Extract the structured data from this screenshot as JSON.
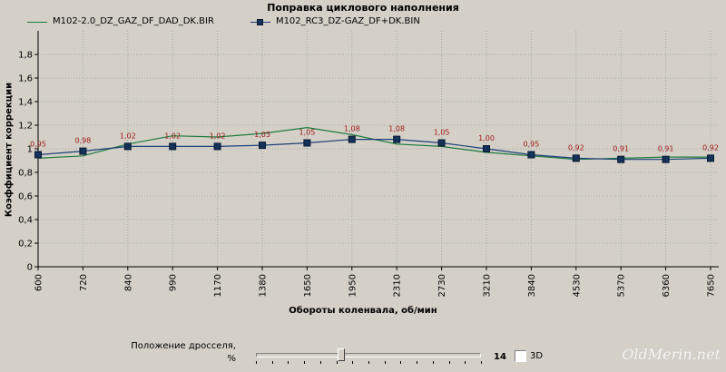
{
  "chart_data": {
    "type": "line",
    "title": "Поправка циклового наполнения",
    "xlabel": "Обороты коленвала, об/мин",
    "ylabel": "Коэффициент коррекции",
    "categories": [
      "600",
      "720",
      "840",
      "990",
      "1170",
      "1380",
      "1650",
      "1950",
      "2310",
      "2730",
      "3210",
      "3840",
      "4530",
      "5370",
      "6360",
      "7650"
    ],
    "ylim": [
      0,
      2
    ],
    "yticks": [
      "0",
      "0,2",
      "0,4",
      "0,6",
      "0,8",
      "1",
      "1,2",
      "1,4",
      "1,6",
      "1,8"
    ],
    "grid": true,
    "legend_position": "top-left",
    "series": [
      {
        "name": "M102-2.0_DZ_GAZ_DF_DAD_DK.BIR",
        "color": "#1d7a3c",
        "marker": "none",
        "values": [
          0.92,
          0.94,
          1.04,
          1.11,
          1.1,
          1.13,
          1.18,
          1.12,
          1.04,
          1.02,
          0.97,
          0.94,
          0.91,
          0.92,
          0.93,
          0.93
        ]
      },
      {
        "name": "M102_RC3_DZ-GAZ_DF+DK.BIN",
        "color": "#1c3e78",
        "marker": "square",
        "values": [
          0.95,
          0.98,
          1.02,
          1.02,
          1.02,
          1.03,
          1.05,
          1.08,
          1.08,
          1.05,
          1.0,
          0.95,
          0.92,
          0.91,
          0.91,
          0.92
        ],
        "labels": [
          "0,95",
          "0,98",
          "1,02",
          "1,02",
          "1,02",
          "1,03",
          "1,05",
          "1,08",
          "1,08",
          "1,05",
          "1,00",
          "0,95",
          "0,92",
          "0,91",
          "0,91",
          "0,92"
        ]
      }
    ]
  },
  "controls": {
    "throttle_label_line1": "Положение дросселя,",
    "throttle_label_line2": "%",
    "throttle_value": "14",
    "throttle_slider_position": 0.38,
    "throttle_slider_tick_count": 15,
    "checkbox_3d_label": "3D",
    "checkbox_3d_checked": false
  },
  "watermark": "OldMerin.net"
}
